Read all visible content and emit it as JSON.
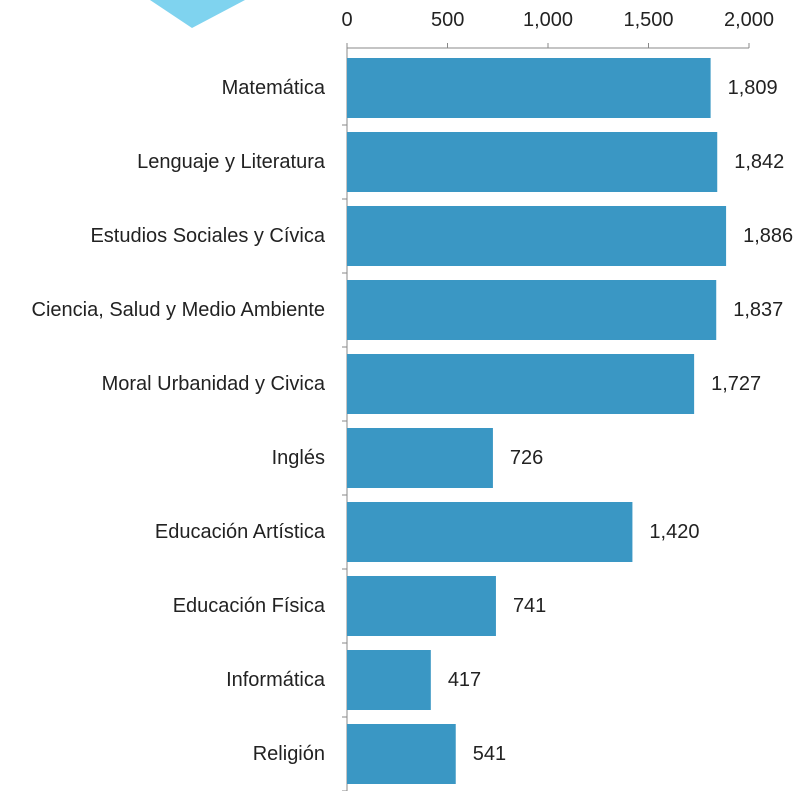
{
  "chart_data": {
    "type": "bar",
    "orientation": "horizontal",
    "categories": [
      "Matemática",
      "Lenguaje y Literatura",
      "Estudios Sociales y Cívica",
      "Ciencia, Salud y Medio Ambiente",
      "Moral Urbanidad y Civica",
      "Inglés",
      "Educación Artística",
      "Educación Física",
      "Informática",
      "Religión"
    ],
    "values": [
      1809,
      1842,
      1886,
      1837,
      1727,
      726,
      1420,
      741,
      417,
      541
    ],
    "value_labels": [
      "1,809",
      "1,842",
      "1,886",
      "1,837",
      "1,727",
      "726",
      "1,420",
      "741",
      "417",
      "541"
    ],
    "color": "#3a97c4",
    "xlim": [
      0,
      2000
    ],
    "xticks": [
      0,
      500,
      {
        "value": 1000,
        "label": "1,000"
      },
      {
        "value": 1500,
        "label": "1,500"
      },
      {
        "value": 2000,
        "label": "2,000"
      }
    ]
  }
}
